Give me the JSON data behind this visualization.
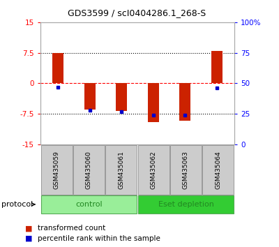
{
  "title": "GDS3599 / scI0404286.1_268-S",
  "samples": [
    "GSM435059",
    "GSM435060",
    "GSM435061",
    "GSM435062",
    "GSM435063",
    "GSM435064"
  ],
  "transformed_counts": [
    7.5,
    -6.5,
    -6.8,
    -9.5,
    -9.2,
    8.0
  ],
  "percentile_ranks": [
    47,
    28,
    27,
    24,
    24,
    46
  ],
  "groups": [
    "control",
    "control",
    "control",
    "Eset depletion",
    "Eset depletion",
    "Eset depletion"
  ],
  "ylim_left": [
    -15,
    15
  ],
  "ylim_right": [
    0,
    100
  ],
  "yticks_left": [
    -15,
    -7.5,
    0,
    7.5,
    15
  ],
  "yticks_right": [
    0,
    25,
    50,
    75,
    100
  ],
  "ytick_labels_left": [
    "-15",
    "-7.5",
    "0",
    "7.5",
    "15"
  ],
  "ytick_labels_right": [
    "0",
    "25",
    "50",
    "75",
    "100%"
  ],
  "hlines": [
    -7.5,
    0,
    7.5
  ],
  "hline_styles": [
    "dotted",
    "dashed",
    "dotted"
  ],
  "hline_colors": [
    "black",
    "red",
    "black"
  ],
  "bar_color": "#cc2200",
  "dot_color": "#0000cc",
  "group_colors_control": "#99ee99",
  "group_colors_eset": "#33cc33",
  "group_label_color": "#228822",
  "protocol_label": "protocol",
  "legend_items": [
    "transformed count",
    "percentile rank within the sample"
  ],
  "legend_colors": [
    "#cc2200",
    "#0000cc"
  ],
  "background_color": "#ffffff",
  "label_bg_color": "#cccccc",
  "title_fontsize": 9,
  "tick_fontsize": 7.5,
  "sample_fontsize": 6.5,
  "group_fontsize": 8,
  "legend_fontsize": 7.5,
  "protocol_fontsize": 8
}
